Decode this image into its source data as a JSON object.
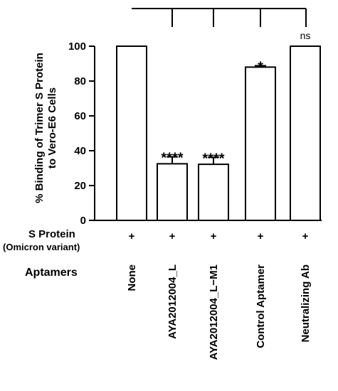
{
  "chart_data": {
    "type": "bar",
    "ylabel_line1": "% Binding of Trimer S Protein",
    "ylabel_line2": "to Vero-E6 Cells",
    "ylim": [
      0,
      100
    ],
    "yticks": [
      "0",
      "20",
      "40",
      "60",
      "80",
      "100"
    ],
    "categories": [
      "None",
      "AYA2012004_L",
      "AYA2012004_L−M1",
      "Control Aptamer",
      "Neutralizing Ab"
    ],
    "values": [
      100,
      32.5,
      32.2,
      88,
      100
    ],
    "errors": [
      0,
      4,
      4,
      0.8,
      0
    ],
    "significance": [
      "",
      "****",
      "****",
      "*",
      "ns"
    ],
    "s_protein_marks": [
      "+",
      "+",
      "+",
      "+",
      "+"
    ],
    "row_label_s_protein": "S Protein",
    "row_label_variant": "(Omicron variant)",
    "row_label_aptamers": "Aptamers",
    "bar_color": "#ffffff",
    "outline_color": "#000000"
  }
}
